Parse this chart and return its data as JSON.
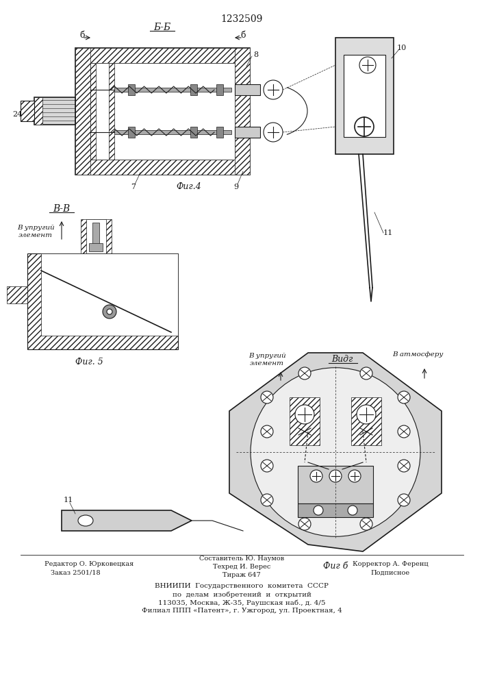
{
  "patent_number": "1232509",
  "background_color": "#ffffff",
  "line_color": "#1a1a1a",
  "fig4_label": "Фиг.4",
  "fig5_label": "Фиг. 5",
  "fig6_label": "Фиг б",
  "section_bb": "Б-Б",
  "section_vv": "В-В",
  "view_vidg": "Видг",
  "label_b1": "б",
  "label_b2": "б",
  "label_24": "24",
  "label_7": "7",
  "label_8": "8",
  "label_9": "9",
  "label_10": "10",
  "label_11": "11",
  "to_elastic_1": "В упругий\nэлемент",
  "to_elastic_2": "В упругий\nэлемент",
  "to_atmosphere": "В атмосферу",
  "footer_editor": "Редактор О. Юрковецкая",
  "footer_composer": "Составитель Ю. Наумов",
  "footer_order": "Заказ 2501/18",
  "footer_techred": "Техред И. Верес",
  "footer_corrector": "Корректор А. Ференц",
  "footer_tirazh": "Тираж 647",
  "footer_podpisnoe": "Подписное",
  "footer_vnipi1": "ВНИИПИ  Государственного  комитета  СССР",
  "footer_vnipi2": "по  делам  изобретений  и  открытий",
  "footer_vnipi3": "113035, Москва, Ж-35, Раушская наб., д. 4/5",
  "footer_vnipi4": "Филиал ППП «Патент», г. Ужгород, ул. Проектная, 4"
}
